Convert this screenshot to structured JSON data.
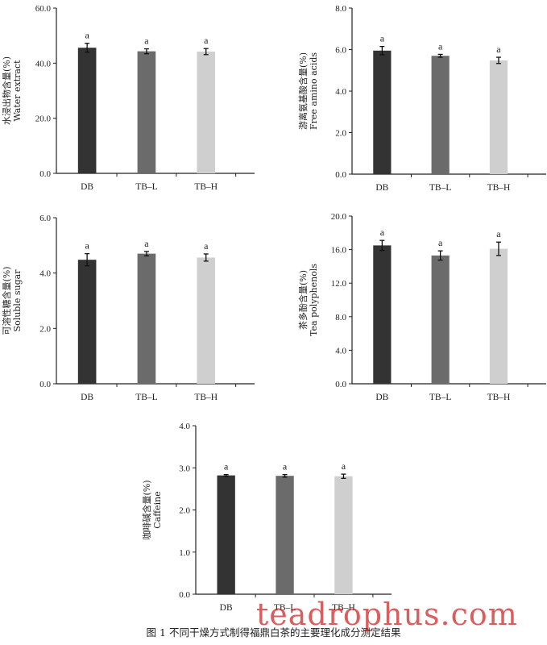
{
  "caption": "图 1   不同干燥方式制得福鼎白茶的主要理化成分测定结果",
  "watermark": "teadrophus.com",
  "colors": {
    "DB": "#333333",
    "TB-L": "#6b6b6b",
    "TB-H": "#cfcfcf",
    "axis": "#222222"
  },
  "chart_data": [
    {
      "type": "bar",
      "ylabel_cn": "水浸出物含量(%)",
      "ylabel_en": "Water extract",
      "categories": [
        "DB",
        "TB–L",
        "TB–H"
      ],
      "values": [
        45.6,
        44.3,
        44.2
      ],
      "errors": [
        1.6,
        0.9,
        1.1
      ],
      "sig": [
        "a",
        "a",
        "a"
      ],
      "ylim": [
        0,
        60
      ],
      "ticks": [
        "0.0",
        "20.0",
        "40.0",
        "60.0"
      ]
    },
    {
      "type": "bar",
      "ylabel_cn": "游离氨基酸含量(%)",
      "ylabel_en": "Free amino acids",
      "categories": [
        "DB",
        "TB–L",
        "TB–H"
      ],
      "values": [
        5.95,
        5.7,
        5.48
      ],
      "errors": [
        0.2,
        0.07,
        0.15
      ],
      "sig": [
        "a",
        "a",
        "a"
      ],
      "ylim": [
        0,
        8
      ],
      "ticks": [
        "0.0",
        "2.0",
        "4.0",
        "6.0",
        "8.0"
      ]
    },
    {
      "type": "bar",
      "ylabel_cn": "可溶性糖含量(%)",
      "ylabel_en": "Soluble sugar",
      "categories": [
        "DB",
        "TB–L",
        "TB–H"
      ],
      "values": [
        4.48,
        4.7,
        4.56
      ],
      "errors": [
        0.22,
        0.08,
        0.13
      ],
      "sig": [
        "a",
        "a",
        "a"
      ],
      "ylim": [
        0,
        6
      ],
      "ticks": [
        "0.0",
        "2.0",
        "4.0",
        "6.0"
      ]
    },
    {
      "type": "bar",
      "ylabel_cn": "茶多酚含量(%)",
      "ylabel_en": "Tea polyphenols",
      "categories": [
        "DB",
        "TB–L",
        "TB–H"
      ],
      "values": [
        16.5,
        15.3,
        16.1
      ],
      "errors": [
        0.6,
        0.55,
        0.8
      ],
      "sig": [
        "a",
        "a",
        "a"
      ],
      "ylim": [
        0,
        20
      ],
      "ticks": [
        "0.0",
        "4.0",
        "8.0",
        "12.0",
        "16.0",
        "20.0"
      ]
    },
    {
      "type": "bar",
      "ylabel_cn": "咖啡碱含量(%)",
      "ylabel_en": "Caffeine",
      "categories": [
        "DB",
        "TB–L",
        "TB–H"
      ],
      "values": [
        2.82,
        2.81,
        2.8
      ],
      "errors": [
        0.02,
        0.03,
        0.05
      ],
      "sig": [
        "a",
        "a",
        "a"
      ],
      "ylim": [
        0,
        4
      ],
      "ticks": [
        "0.0",
        "1.0",
        "2.0",
        "3.0",
        "4.0"
      ]
    }
  ]
}
